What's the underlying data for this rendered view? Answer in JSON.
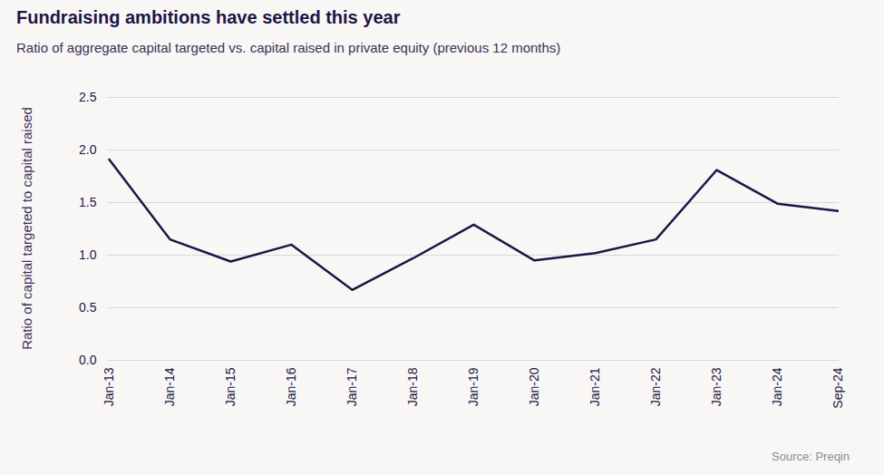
{
  "chart_data": {
    "type": "line",
    "title": "Fundraising ambitions have settled this year",
    "subtitle": "Ratio of aggregate capital targeted vs. capital raised in private equity (previous 12 months)",
    "y_label": "Ratio of capital targeted to capital raised",
    "source": "Source: Preqin",
    "categories": [
      "Jan-13",
      "Jan-14",
      "Jan-15",
      "Jan-16",
      "Jan-17",
      "Jan-18",
      "Jan-19",
      "Jan-20",
      "Jan-21",
      "Jan-22",
      "Jan-23",
      "Jan-24",
      "Sep-24"
    ],
    "values": [
      1.91,
      1.15,
      0.94,
      1.1,
      0.67,
      0.97,
      1.29,
      0.95,
      1.02,
      1.15,
      1.81,
      1.49,
      1.42
    ],
    "color": "#1f1545",
    "ylim": [
      0,
      2.5
    ],
    "yticks": [
      {
        "value": 0,
        "label": "0.0"
      },
      {
        "value": 0.5,
        "label": "0.5"
      },
      {
        "value": 1,
        "label": "1.0"
      },
      {
        "value": 1.5,
        "label": "1.5"
      },
      {
        "value": 2,
        "label": "2.0"
      },
      {
        "value": 2.5,
        "label": "2.5"
      }
    ],
    "grid": true
  }
}
